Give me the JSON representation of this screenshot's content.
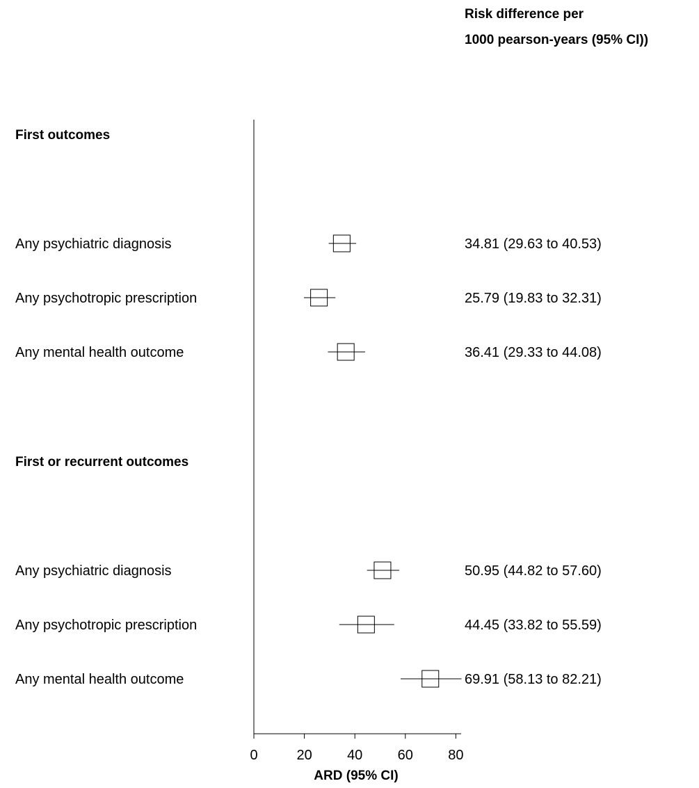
{
  "header": {
    "line1": "Risk difference per",
    "line2": "1000 pearson-years (95% CI))"
  },
  "chart_data": {
    "type": "forest",
    "xlabel": "ARD (95% CI)",
    "xlim": [
      0,
      82
    ],
    "xticks": [
      0,
      20,
      40,
      60,
      80
    ],
    "sections": [
      {
        "heading": "First outcomes",
        "rows": [
          {
            "label": "Any psychiatric diagnosis",
            "estimate": 34.81,
            "lower": 29.63,
            "upper": 40.53,
            "text": "34.81 (29.63 to 40.53)"
          },
          {
            "label": "Any psychotropic prescription",
            "estimate": 25.79,
            "lower": 19.83,
            "upper": 32.31,
            "text": "25.79 (19.83 to 32.31)"
          },
          {
            "label": "Any mental health outcome",
            "estimate": 36.41,
            "lower": 29.33,
            "upper": 44.08,
            "text": "36.41 (29.33 to 44.08)"
          }
        ]
      },
      {
        "heading": "First or recurrent outcomes",
        "rows": [
          {
            "label": "Any psychiatric diagnosis",
            "estimate": 50.95,
            "lower": 44.82,
            "upper": 57.6,
            "text": "50.95 (44.82 to 57.60)"
          },
          {
            "label": "Any psychotropic prescription",
            "estimate": 44.45,
            "lower": 33.82,
            "upper": 55.59,
            "text": "44.45 (33.82 to 55.59)"
          },
          {
            "label": "Any mental health outcome",
            "estimate": 69.91,
            "lower": 58.13,
            "upper": 82.21,
            "text": "69.91 (58.13 to 82.21)"
          }
        ]
      }
    ]
  }
}
